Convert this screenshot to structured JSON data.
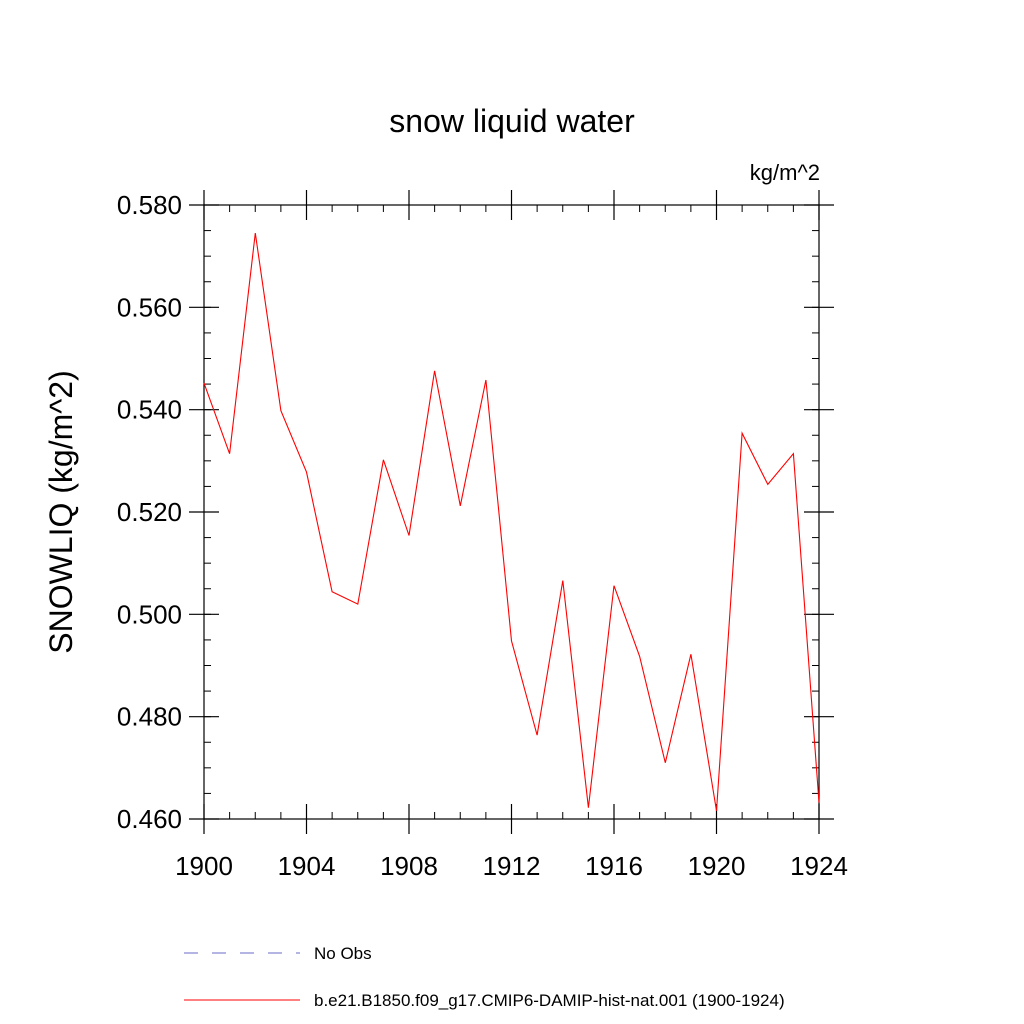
{
  "chart_data": {
    "type": "line",
    "title": "snow liquid water",
    "units_label": "kg/m^2",
    "xlabel": "",
    "ylabel": "SNOWLIQ  (kg/m^2)",
    "xlim": [
      1900,
      1924
    ],
    "ylim": [
      0.46,
      0.58
    ],
    "x_ticks": [
      1900,
      1904,
      1908,
      1912,
      1916,
      1920,
      1924
    ],
    "x_tick_labels": [
      "1900",
      "1904",
      "1908",
      "1912",
      "1916",
      "1920",
      "1924"
    ],
    "y_ticks": [
      0.46,
      0.48,
      0.5,
      0.52,
      0.54,
      0.56,
      0.58
    ],
    "y_tick_labels": [
      "0.460",
      "0.480",
      "0.500",
      "0.520",
      "0.540",
      "0.560",
      "0.580"
    ],
    "x_minor_step": 1,
    "y_minor_step": 0.005,
    "grid": false,
    "legend_position": "bottom",
    "series": [
      {
        "name": "No Obs",
        "color": "#6b6bc8",
        "dash": "dashed",
        "x": [],
        "values": []
      },
      {
        "name": "b.e21.B1850.f09_g17.CMIP6-DAMIP-hist-nat.001 (1900-1924)",
        "color": "#ff0000",
        "dash": "solid",
        "x": [
          1900,
          1901,
          1902,
          1903,
          1904,
          1905,
          1906,
          1907,
          1908,
          1909,
          1910,
          1911,
          1912,
          1913,
          1914,
          1915,
          1916,
          1917,
          1918,
          1919,
          1920,
          1921,
          1922,
          1923,
          1924
        ],
        "values": [
          0.5452,
          0.5314,
          0.5745,
          0.5398,
          0.5278,
          0.5044,
          0.502,
          0.5302,
          0.5154,
          0.5476,
          0.5212,
          0.5458,
          0.4948,
          0.4764,
          0.5066,
          0.4622,
          0.5056,
          0.4918,
          0.471,
          0.4922,
          0.4616,
          0.5354,
          0.5254,
          0.5314,
          0.4632
        ]
      }
    ]
  }
}
